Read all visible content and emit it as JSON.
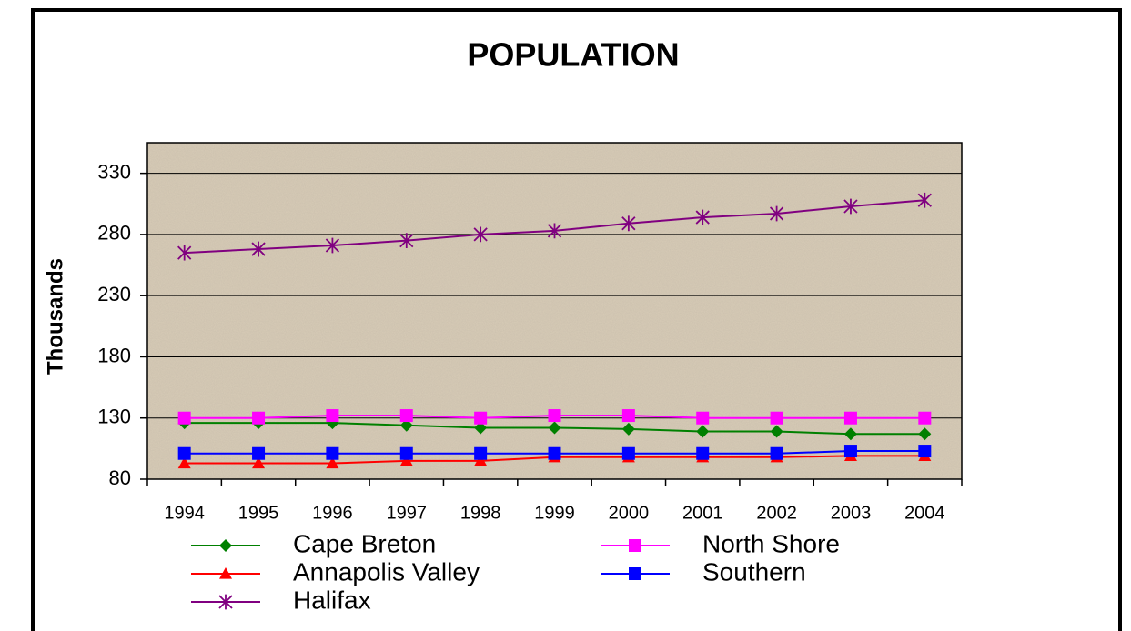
{
  "chart_data": {
    "type": "line",
    "title": "POPULATION",
    "y_label": "Thousands",
    "categories": [
      "1994",
      "1995",
      "1996",
      "1997",
      "1998",
      "1999",
      "2000",
      "2001",
      "2002",
      "2003",
      "2004"
    ],
    "ylim": [
      80,
      355
    ],
    "yticks": [
      80,
      130,
      180,
      230,
      280,
      330
    ],
    "grid": true,
    "series": [
      {
        "name": "Cape Breton",
        "color": "#008000",
        "marker": "diamond",
        "values": [
          126,
          126,
          126,
          124,
          122,
          122,
          121,
          119,
          119,
          117,
          117
        ]
      },
      {
        "name": "North Shore",
        "color": "#ff00ff",
        "marker": "square",
        "values": [
          130,
          130,
          132,
          132,
          130,
          132,
          132,
          130,
          130,
          130,
          130
        ]
      },
      {
        "name": "Annapolis Valley",
        "color": "#ff0000",
        "marker": "triangle",
        "values": [
          93,
          93,
          93,
          95,
          95,
          98,
          98,
          98,
          98,
          99,
          99
        ]
      },
      {
        "name": "Southern",
        "color": "#0000ff",
        "marker": "square",
        "values": [
          101,
          101,
          101,
          101,
          101,
          101,
          101,
          101,
          101,
          103,
          103
        ]
      },
      {
        "name": "Halifax",
        "color": "#800080",
        "marker": "star",
        "values": [
          265,
          268,
          271,
          275,
          280,
          283,
          289,
          294,
          297,
          303,
          308
        ]
      }
    ]
  }
}
